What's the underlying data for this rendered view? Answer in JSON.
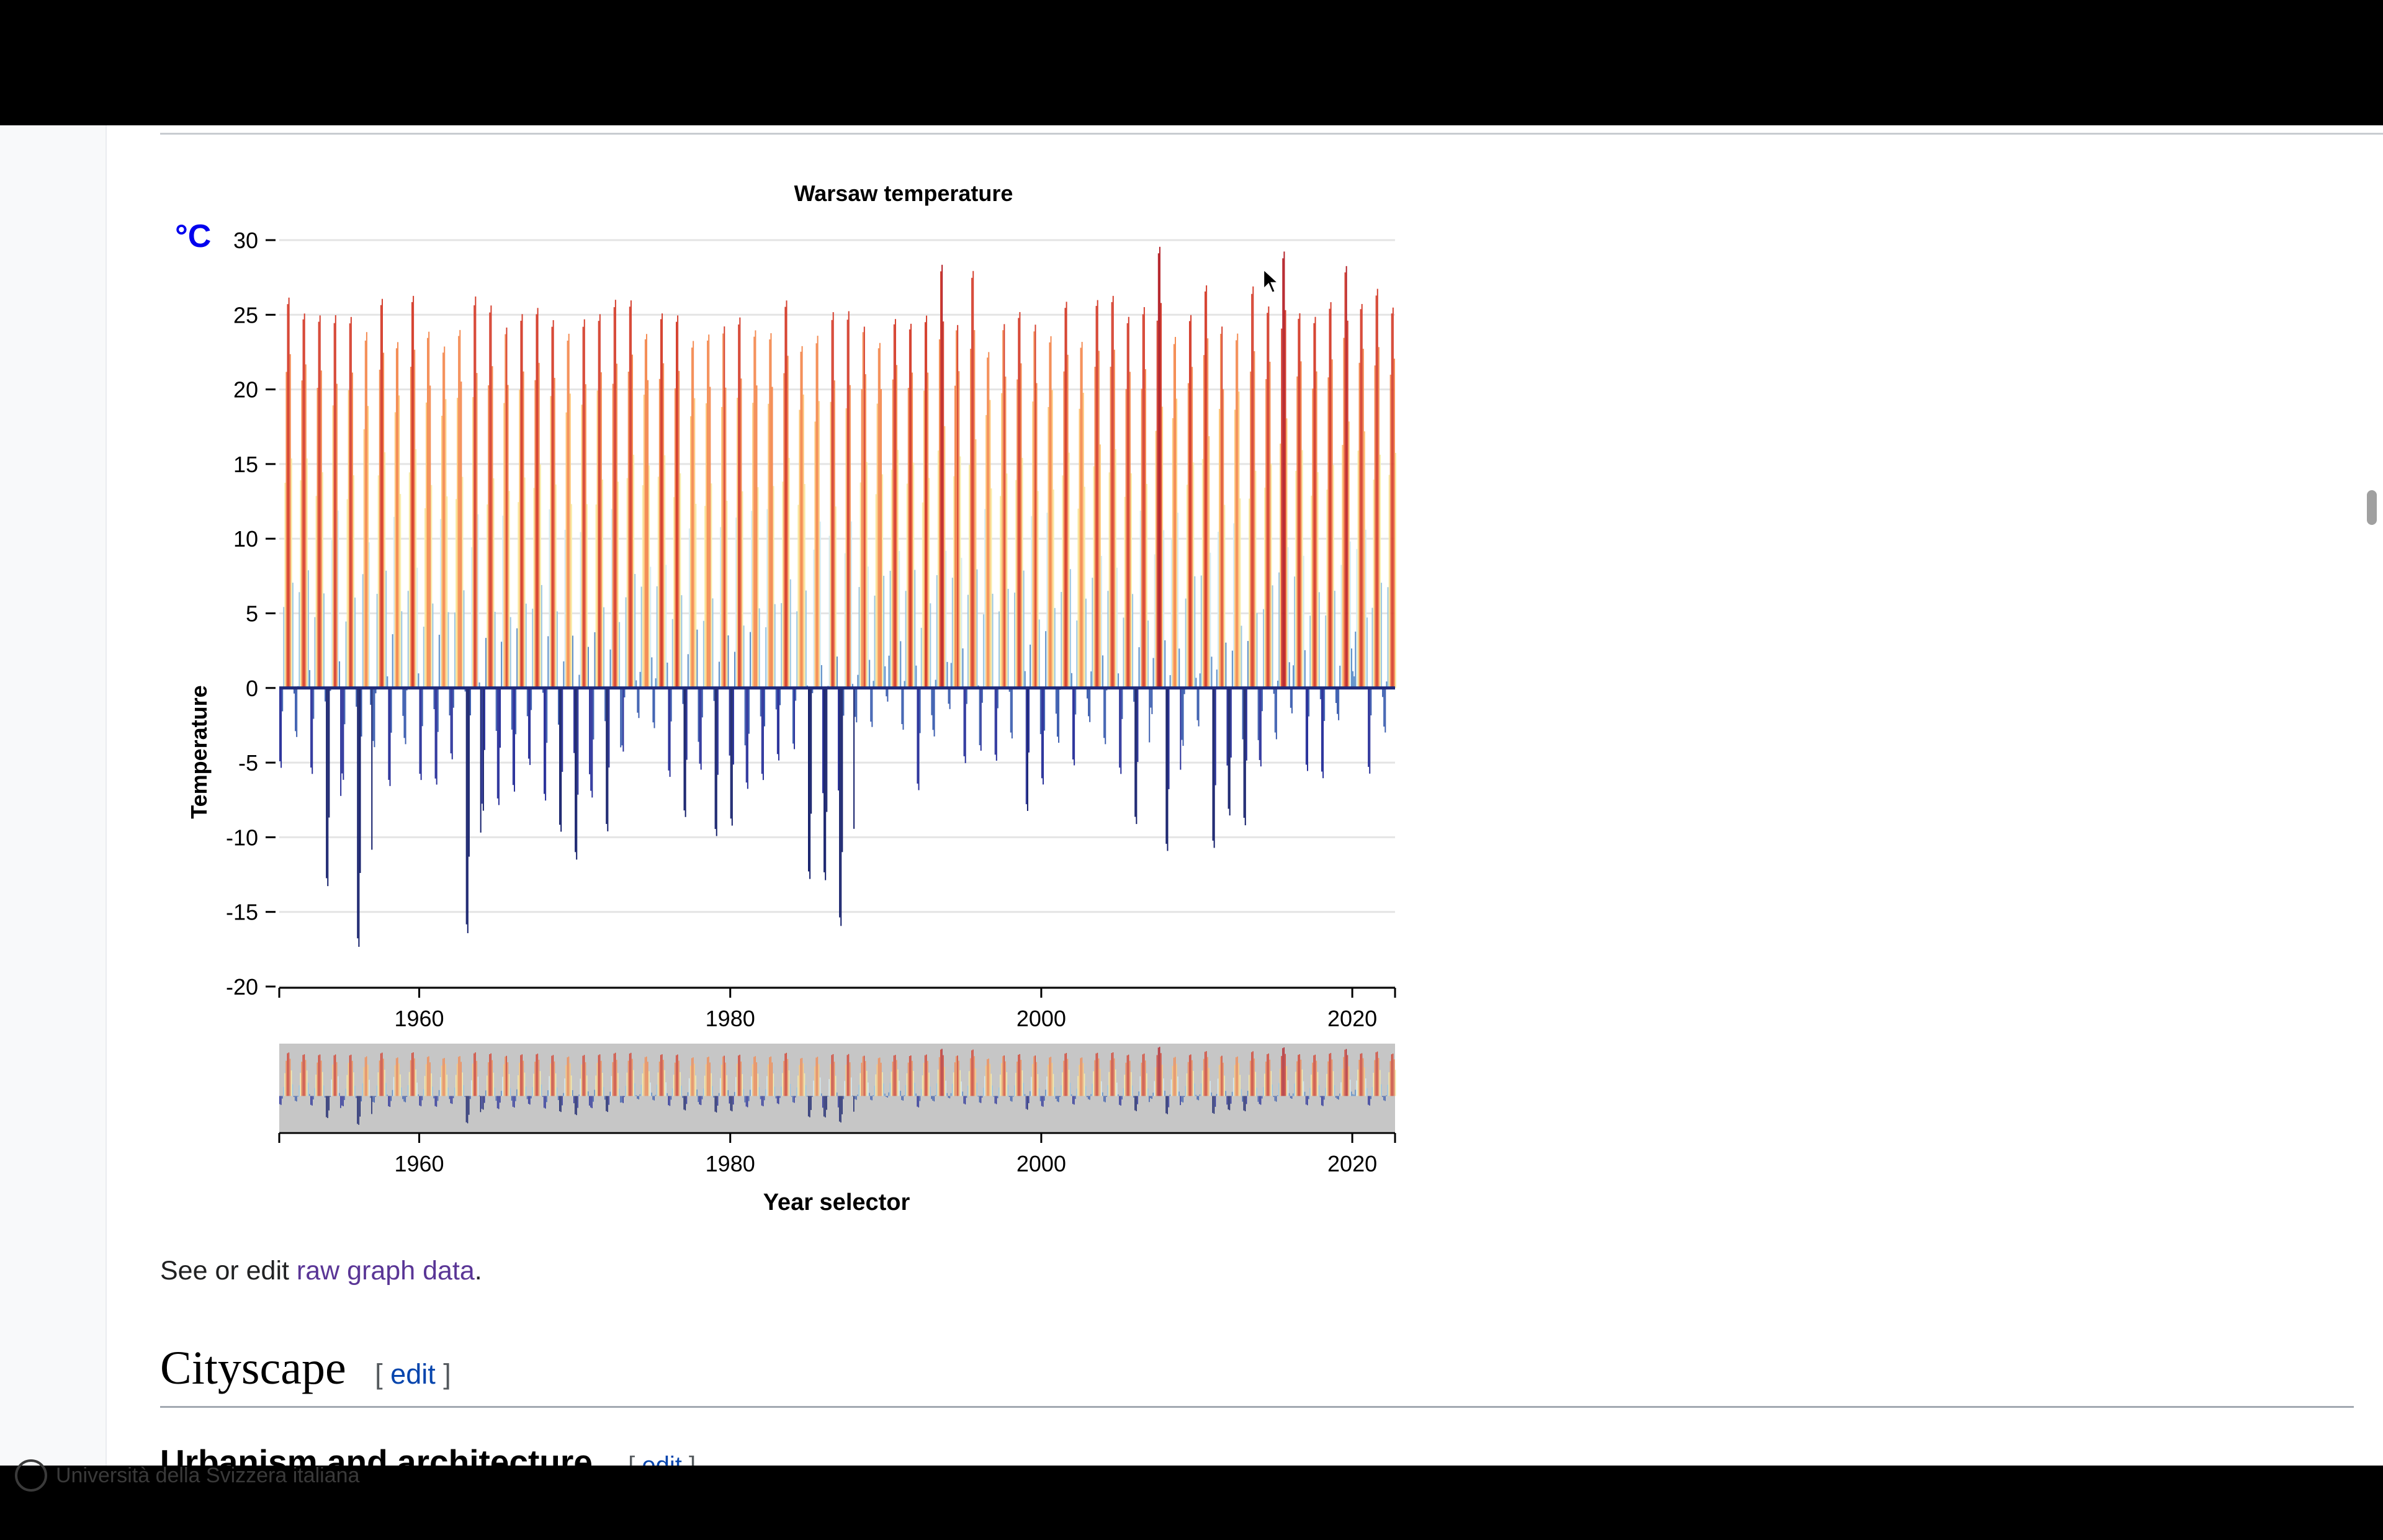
{
  "colors": {
    "accent_unit": "#0000ee",
    "link_visited": "#5a3696",
    "link": "#0645ad",
    "scale": [
      "#141f6b",
      "#28309a",
      "#3d5fb0",
      "#5f8fc9",
      "#9cc7e3",
      "#d6ecf2",
      "#f8eca8",
      "#fdc77a",
      "#f48b52",
      "#d53f2d",
      "#b41f26"
    ]
  },
  "chart_data": {
    "type": "bar",
    "title": "Warsaw temperature",
    "unit": "°C",
    "ylabel": "Temperature",
    "xlabel_selector": "Year selector",
    "ylim": [
      -20,
      30
    ],
    "yticks": [
      "30",
      "25",
      "20",
      "15",
      "10",
      "5",
      "0",
      "-5",
      "-10",
      "-15",
      "-20"
    ],
    "xlim": [
      1951,
      2022.75
    ],
    "xticks": [
      {
        "label": "1960",
        "value": 1960
      },
      {
        "label": "1980",
        "value": 1980
      },
      {
        "label": "2000",
        "value": 2000
      },
      {
        "label": "2020",
        "value": 2020
      }
    ],
    "series_description": "Monthly mean temperature bars (°C) from 1951 to 2022, colored by temperature",
    "annual_summer_max": [
      26.5,
      25.4,
      25.3,
      25.4,
      25.2,
      24.3,
      26.4,
      23.5,
      26.6,
      24.2,
      23.2,
      24.3,
      26.7,
      26.0,
      24.5,
      25.4,
      25.8,
      25.0,
      24.1,
      25.1,
      25.4,
      26.4,
      26.3,
      24.0,
      25.4,
      25.3,
      23.6,
      24.0,
      24.6,
      25.2,
      24.3,
      24.1,
      26.3,
      23.2,
      24.0,
      25.6,
      25.7,
      24.5,
      23.4,
      25.0,
      24.7,
      25.3,
      28.7,
      24.6,
      28.3,
      22.8,
      24.7,
      25.5,
      24.7,
      23.9,
      26.2,
      23.5,
      26.3,
      26.6,
      25.2,
      25.9,
      29.9,
      23.9,
      25.3,
      27.3,
      24.6,
      24.1,
      27.3,
      25.9,
      29.6,
      25.4,
      25.2,
      26.2,
      28.6,
      26.0,
      27.1,
      25.8
    ],
    "annual_winter_min": [
      -5.7,
      -3.6,
      -6.1,
      -13.7,
      -6.5,
      -17.8,
      -4.3,
      -6.9,
      -4.1,
      -6.5,
      -6.8,
      -5.1,
      -16.9,
      -8.6,
      -8.2,
      -7.3,
      -5.5,
      -7.9,
      -10.0,
      -11.9,
      -7.7,
      -10.0,
      -4.6,
      -2.3,
      -3.0,
      -6.3,
      -9.0,
      -5.8,
      -10.3,
      -9.6,
      -7.1,
      -6.5,
      -5.2,
      -4.4,
      -13.2,
      -13.3,
      -16.4,
      -2.6,
      -2.9,
      -1.2,
      -3.1,
      -7.2,
      -3.6,
      -1.7,
      -5.4,
      -4.5,
      -5.2,
      -3.7,
      -8.6,
      -6.8,
      -4.0,
      -5.5,
      -2.6,
      -4.1,
      -6.1,
      -9.5,
      -2.1,
      -11.3,
      -4.2,
      -2.9,
      -11.1,
      -8.9,
      -9.6,
      -5.6,
      -3.8,
      -2.0,
      -5.9,
      -6.4,
      -2.5,
      0.5,
      -6.1,
      -3.3
    ],
    "annual_winter_min_note": "The last value belongs to the partially shown year 2022; the series steps monthly across all years."
  },
  "caption": {
    "prefix": "See or edit ",
    "link": "raw graph data",
    "suffix": "."
  },
  "section": {
    "title": "Cityscape",
    "edit_open": "[ ",
    "edit_label": "edit",
    "edit_close": " ]"
  },
  "subsection": {
    "title": "Urbanism and architecture",
    "edit_open": "[ ",
    "edit_label": "edit",
    "edit_close": " ]"
  },
  "watermark": {
    "text": "Università della Svizzera italiana"
  }
}
